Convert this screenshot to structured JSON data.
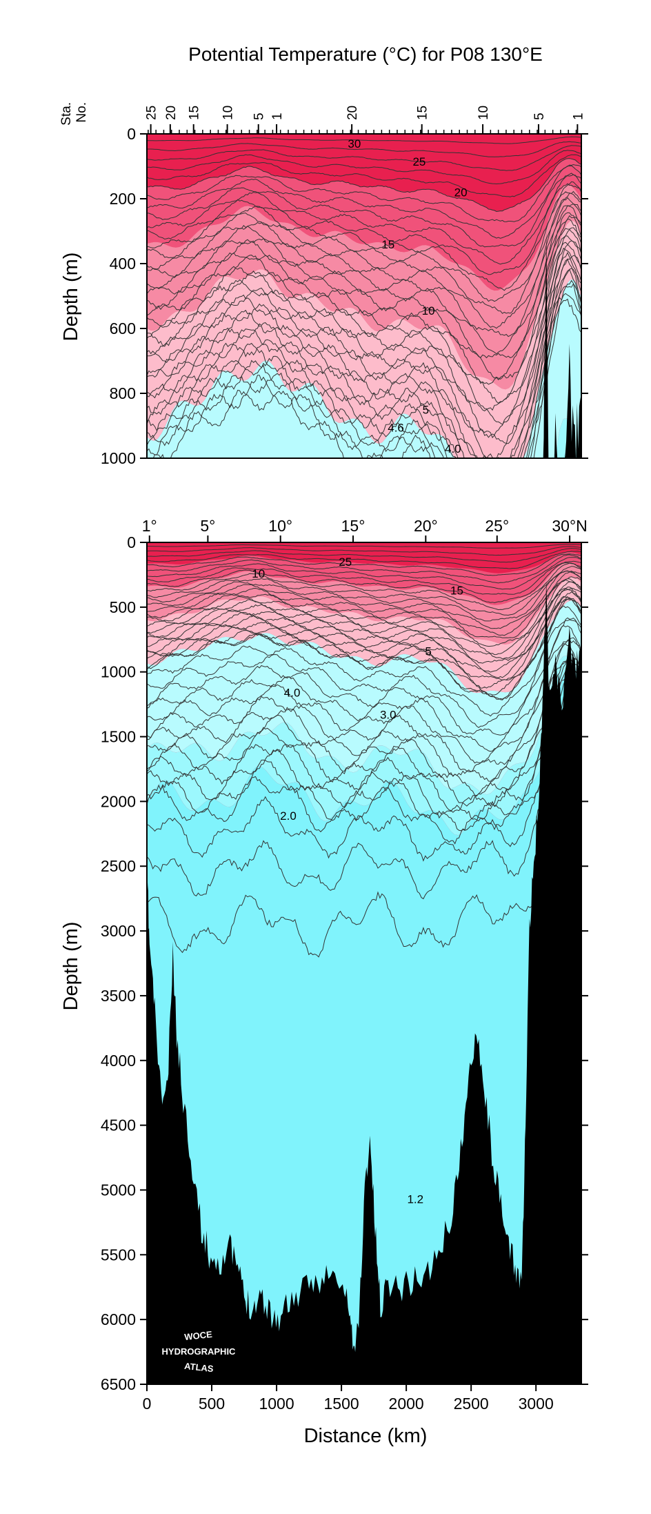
{
  "title": "Potential Temperature (°C) for P08 130°E",
  "colors": {
    "warm_dark": "#e8204f",
    "warm_mid": "#f0527a",
    "warm_light": "#f68aa4",
    "pink": "#fdbccb",
    "cyan_light": "#b8fbfe",
    "cyan_mid": "#9cf8fd",
    "cyan_deep": "#80f3fc",
    "bathymetry": "#000000",
    "contour": "#333333"
  },
  "logo": {
    "line1": "WOCE",
    "line2": "HYDROGRAPHIC",
    "line3": "ATLAS"
  },
  "chart_data": [
    {
      "type": "heatmap",
      "panel": "upper",
      "ylabel": "Depth (m)",
      "ylim": [
        1000,
        0
      ],
      "xlim": [
        0,
        3350
      ],
      "yticks": [
        0,
        200,
        400,
        600,
        800,
        1000
      ],
      "station_axis_label": [
        "Sta.",
        "No."
      ],
      "station_ticks": [
        {
          "label": "25",
          "km": 30
        },
        {
          "label": "20",
          "km": 180
        },
        {
          "label": "15",
          "km": 360
        },
        {
          "label": "10",
          "km": 620
        },
        {
          "label": "5",
          "km": 860
        },
        {
          "label": "1",
          "km": 1000
        },
        {
          "label": "20",
          "km": 1580
        },
        {
          "label": "15",
          "km": 2120
        },
        {
          "label": "10",
          "km": 2590
        },
        {
          "label": "5",
          "km": 3020
        },
        {
          "label": "1",
          "km": 3320
        }
      ],
      "isotherm_labels": [
        {
          "label": "30",
          "km": 1600,
          "depth": 30
        },
        {
          "label": "25",
          "km": 2100,
          "depth": 85
        },
        {
          "label": "20",
          "km": 2420,
          "depth": 180
        },
        {
          "label": "15",
          "km": 1860,
          "depth": 340
        },
        {
          "label": "10",
          "km": 2170,
          "depth": 545
        },
        {
          "label": "5",
          "km": 2150,
          "depth": 850
        },
        {
          "label": "4.6",
          "km": 1920,
          "depth": 905
        },
        {
          "label": "4.0",
          "km": 2360,
          "depth": 970
        }
      ]
    },
    {
      "type": "heatmap",
      "panel": "lower",
      "xlabel": "Distance (km)",
      "ylabel": "Depth (m)",
      "xlim": [
        0,
        3350
      ],
      "ylim": [
        6500,
        0
      ],
      "xticks": [
        0,
        500,
        1000,
        1500,
        2000,
        2500,
        3000
      ],
      "yticks": [
        0,
        500,
        1000,
        1500,
        2000,
        2500,
        3000,
        3500,
        4000,
        4500,
        5000,
        5500,
        6000,
        6500
      ],
      "latitude_ticks": [
        {
          "label": "1°",
          "km": 20
        },
        {
          "label": "5°",
          "km": 470
        },
        {
          "label": "10°",
          "km": 1030
        },
        {
          "label": "15°",
          "km": 1590
        },
        {
          "label": "20°",
          "km": 2150
        },
        {
          "label": "25°",
          "km": 2700
        },
        {
          "label": "30°N",
          "km": 3260
        }
      ],
      "isotherm_labels": [
        {
          "label": "25",
          "km": 1530,
          "depth": 150
        },
        {
          "label": "10",
          "km": 860,
          "depth": 240
        },
        {
          "label": "15",
          "km": 2390,
          "depth": 370
        },
        {
          "label": "5",
          "km": 2170,
          "depth": 840
        },
        {
          "label": "4.0",
          "km": 1120,
          "depth": 1160
        },
        {
          "label": "3.0",
          "km": 1860,
          "depth": 1330
        },
        {
          "label": "2.0",
          "km": 1090,
          "depth": 2110
        },
        {
          "label": "1.2",
          "km": 2070,
          "depth": 5070
        }
      ]
    }
  ]
}
